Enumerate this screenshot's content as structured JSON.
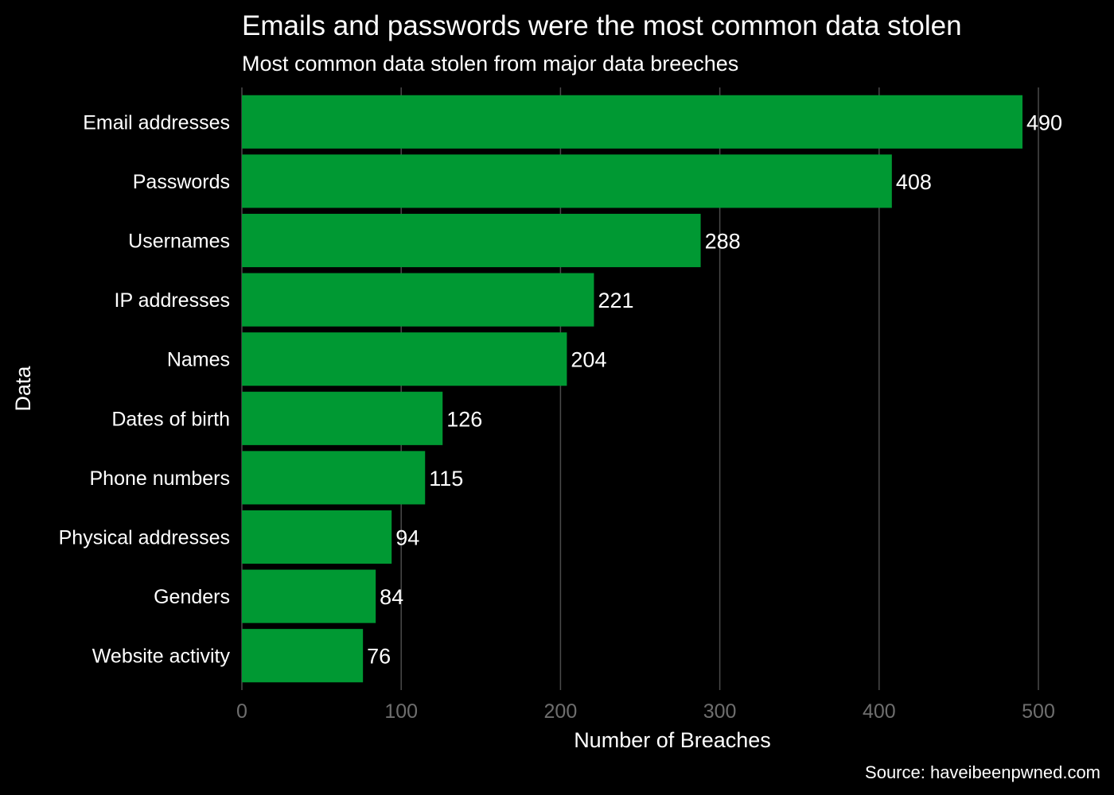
{
  "chart_data": {
    "type": "bar",
    "orientation": "horizontal",
    "title": "Emails and passwords were the most common data stolen",
    "subtitle": "Most common data stolen from major data breeches",
    "xlabel": "Number of Breaches",
    "ylabel": "Data",
    "caption": "Source: haveibeenpwned.com",
    "categories": [
      "Email addresses",
      "Passwords",
      "Usernames",
      "IP addresses",
      "Names",
      "Dates of birth",
      "Phone numbers",
      "Physical addresses",
      "Genders",
      "Website activity"
    ],
    "values": [
      490,
      408,
      288,
      221,
      204,
      126,
      115,
      94,
      84,
      76
    ],
    "xlim": [
      0,
      500
    ],
    "x_ticks": [
      0,
      100,
      200,
      300,
      400,
      500
    ],
    "grid": "vertical",
    "bar_color": "#009933",
    "background_color": "#000000",
    "grid_color": "#4a4a4a",
    "tick_color": "#6e6e6e"
  }
}
